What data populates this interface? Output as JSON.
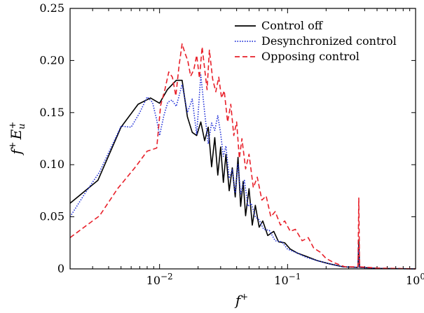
{
  "chart_data": {
    "type": "line",
    "xscale": "log",
    "xlim": [
      0.002,
      1
    ],
    "ylim": [
      0,
      0.25
    ],
    "xlabel": "f+",
    "ylabel": "f+ Eu+",
    "grid": false,
    "legend_position": "top-right",
    "x_ticks": [
      {
        "value": 0.01,
        "mantissa": "10",
        "exponent": "−2"
      },
      {
        "value": 0.1,
        "mantissa": "10",
        "exponent": "−1"
      },
      {
        "value": 1,
        "mantissa": "10",
        "exponent": "0"
      }
    ],
    "y_ticks": [
      {
        "value": 0,
        "label": "0"
      },
      {
        "value": 0.05,
        "label": "0.05"
      },
      {
        "value": 0.1,
        "label": "0.10"
      },
      {
        "value": 0.15,
        "label": "0.15"
      },
      {
        "value": 0.2,
        "label": "0.20"
      },
      {
        "value": 0.25,
        "label": "0.25"
      }
    ],
    "series": [
      {
        "name": "Control off",
        "color": "#000000",
        "dash": "solid",
        "points": [
          [
            0.002,
            0.063
          ],
          [
            0.0033,
            0.085
          ],
          [
            0.005,
            0.136
          ],
          [
            0.0068,
            0.158
          ],
          [
            0.0085,
            0.164
          ],
          [
            0.01,
            0.159
          ],
          [
            0.0115,
            0.172
          ],
          [
            0.0135,
            0.181
          ],
          [
            0.015,
            0.181
          ],
          [
            0.0165,
            0.146
          ],
          [
            0.018,
            0.131
          ],
          [
            0.0195,
            0.128
          ],
          [
            0.021,
            0.141
          ],
          [
            0.0225,
            0.123
          ],
          [
            0.024,
            0.136
          ],
          [
            0.0255,
            0.098
          ],
          [
            0.027,
            0.126
          ],
          [
            0.0285,
            0.09
          ],
          [
            0.03,
            0.117
          ],
          [
            0.0315,
            0.083
          ],
          [
            0.033,
            0.11
          ],
          [
            0.035,
            0.075
          ],
          [
            0.037,
            0.097
          ],
          [
            0.039,
            0.069
          ],
          [
            0.041,
            0.107
          ],
          [
            0.043,
            0.06
          ],
          [
            0.045,
            0.084
          ],
          [
            0.047,
            0.051
          ],
          [
            0.05,
            0.077
          ],
          [
            0.053,
            0.042
          ],
          [
            0.056,
            0.061
          ],
          [
            0.06,
            0.04
          ],
          [
            0.064,
            0.046
          ],
          [
            0.07,
            0.032
          ],
          [
            0.078,
            0.036
          ],
          [
            0.085,
            0.026
          ],
          [
            0.095,
            0.025
          ],
          [
            0.105,
            0.019
          ],
          [
            0.12,
            0.015
          ],
          [
            0.14,
            0.012
          ],
          [
            0.17,
            0.008
          ],
          [
            0.21,
            0.005
          ],
          [
            0.27,
            0.002
          ],
          [
            0.34,
            0.0015
          ],
          [
            0.355,
            0.0015
          ],
          [
            0.36,
            0.028
          ],
          [
            0.365,
            0.0015
          ],
          [
            0.5,
            0.0005
          ],
          [
            1.0,
            0.0
          ]
        ]
      },
      {
        "name": "Desynchronized control",
        "color": "#1f2fd8",
        "dash": "dotted",
        "points": [
          [
            0.002,
            0.05
          ],
          [
            0.0026,
            0.072
          ],
          [
            0.0034,
            0.093
          ],
          [
            0.005,
            0.137
          ],
          [
            0.006,
            0.136
          ],
          [
            0.007,
            0.15
          ],
          [
            0.008,
            0.165
          ],
          [
            0.0088,
            0.16
          ],
          [
            0.0095,
            0.143
          ],
          [
            0.01,
            0.128
          ],
          [
            0.0108,
            0.147
          ],
          [
            0.0116,
            0.16
          ],
          [
            0.0125,
            0.162
          ],
          [
            0.0135,
            0.156
          ],
          [
            0.015,
            0.177
          ],
          [
            0.0165,
            0.15
          ],
          [
            0.018,
            0.163
          ],
          [
            0.0195,
            0.129
          ],
          [
            0.021,
            0.186
          ],
          [
            0.0225,
            0.15
          ],
          [
            0.024,
            0.12
          ],
          [
            0.0255,
            0.14
          ],
          [
            0.027,
            0.133
          ],
          [
            0.0285,
            0.147
          ],
          [
            0.03,
            0.13
          ],
          [
            0.0315,
            0.108
          ],
          [
            0.033,
            0.118
          ],
          [
            0.035,
            0.087
          ],
          [
            0.037,
            0.095
          ],
          [
            0.039,
            0.073
          ],
          [
            0.041,
            0.1
          ],
          [
            0.043,
            0.072
          ],
          [
            0.046,
            0.085
          ],
          [
            0.049,
            0.06
          ],
          [
            0.052,
            0.063
          ],
          [
            0.056,
            0.05
          ],
          [
            0.06,
            0.047
          ],
          [
            0.065,
            0.038
          ],
          [
            0.072,
            0.037
          ],
          [
            0.08,
            0.027
          ],
          [
            0.09,
            0.026
          ],
          [
            0.1,
            0.019
          ],
          [
            0.12,
            0.015
          ],
          [
            0.14,
            0.011
          ],
          [
            0.17,
            0.008
          ],
          [
            0.21,
            0.005
          ],
          [
            0.27,
            0.002
          ],
          [
            0.355,
            0.0015
          ],
          [
            0.36,
            0.022
          ],
          [
            0.365,
            0.0015
          ],
          [
            0.5,
            0.0005
          ],
          [
            1.0,
            0.0
          ]
        ]
      },
      {
        "name": "Opposing control",
        "color": "#e8202a",
        "dash": "dashed",
        "points": [
          [
            0.002,
            0.03
          ],
          [
            0.0034,
            0.051
          ],
          [
            0.0047,
            0.077
          ],
          [
            0.0065,
            0.098
          ],
          [
            0.008,
            0.113
          ],
          [
            0.0095,
            0.116
          ],
          [
            0.0102,
            0.157
          ],
          [
            0.011,
            0.172
          ],
          [
            0.0118,
            0.189
          ],
          [
            0.0126,
            0.184
          ],
          [
            0.0134,
            0.166
          ],
          [
            0.0142,
            0.195
          ],
          [
            0.015,
            0.216
          ],
          [
            0.0158,
            0.207
          ],
          [
            0.0166,
            0.2
          ],
          [
            0.0175,
            0.185
          ],
          [
            0.0185,
            0.191
          ],
          [
            0.0195,
            0.205
          ],
          [
            0.0205,
            0.183
          ],
          [
            0.0215,
            0.213
          ],
          [
            0.0225,
            0.192
          ],
          [
            0.0235,
            0.172
          ],
          [
            0.0245,
            0.21
          ],
          [
            0.026,
            0.182
          ],
          [
            0.0275,
            0.17
          ],
          [
            0.029,
            0.184
          ],
          [
            0.0305,
            0.164
          ],
          [
            0.032,
            0.171
          ],
          [
            0.034,
            0.141
          ],
          [
            0.036,
            0.158
          ],
          [
            0.038,
            0.128
          ],
          [
            0.04,
            0.141
          ],
          [
            0.042,
            0.106
          ],
          [
            0.044,
            0.125
          ],
          [
            0.047,
            0.096
          ],
          [
            0.05,
            0.11
          ],
          [
            0.054,
            0.078
          ],
          [
            0.058,
            0.088
          ],
          [
            0.063,
            0.066
          ],
          [
            0.068,
            0.07
          ],
          [
            0.074,
            0.05
          ],
          [
            0.08,
            0.055
          ],
          [
            0.088,
            0.042
          ],
          [
            0.095,
            0.046
          ],
          [
            0.105,
            0.036
          ],
          [
            0.115,
            0.038
          ],
          [
            0.13,
            0.027
          ],
          [
            0.145,
            0.03
          ],
          [
            0.16,
            0.02
          ],
          [
            0.18,
            0.016
          ],
          [
            0.2,
            0.01
          ],
          [
            0.23,
            0.006
          ],
          [
            0.28,
            0.002
          ],
          [
            0.355,
            0.002
          ],
          [
            0.36,
            0.068
          ],
          [
            0.365,
            0.002
          ],
          [
            0.5,
            0.0008
          ],
          [
            1.0,
            0.0
          ]
        ]
      }
    ]
  }
}
